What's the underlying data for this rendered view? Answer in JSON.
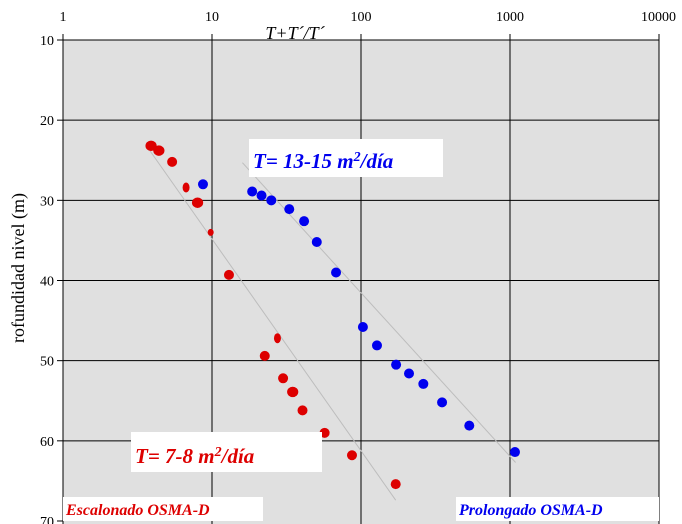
{
  "chart_data": {
    "type": "scatter",
    "title": "",
    "xlabel": "T+T´/T´",
    "ylabel": "rofundidad nivel (m)",
    "x_scale": "log",
    "xlim": [
      1,
      10000
    ],
    "ylim": [
      10,
      70
    ],
    "y_inverted": true,
    "x_tick_labels": [
      "1",
      "10",
      "100",
      "1000",
      "10000"
    ],
    "x_ticks": [
      1,
      10,
      100,
      1000,
      10000
    ],
    "y_tick_labels": [
      "10",
      "20",
      "30",
      "40",
      "50",
      "60",
      "70"
    ],
    "y_ticks": [
      10,
      20,
      30,
      40,
      50,
      60,
      70
    ],
    "grid": true,
    "colors": {
      "plot_background": "#e0e0e0",
      "gridline": "#000000",
      "escalonado": "#dd0000",
      "prolongado": "#0000ee",
      "trend_line": "#bdbdbd"
    },
    "annotations": {
      "prolongado_transmissivity": {
        "prefix": "T= 13-15 m",
        "sup": "2",
        "suffix": "/día"
      },
      "escalonado_transmissivity": {
        "prefix": "T= 7-8 m",
        "sup": "2",
        "suffix": "/día"
      }
    },
    "series": [
      {
        "name": "Escalonado OSMA-D",
        "color": "#dd0000",
        "points": [
          {
            "x": 3.9,
            "y": 23.2,
            "s": "l"
          },
          {
            "x": 4.4,
            "y": 23.8,
            "s": "l"
          },
          {
            "x": 5.4,
            "y": 25.2,
            "s": "m"
          },
          {
            "x": 6.7,
            "y": 28.4,
            "s": "s"
          },
          {
            "x": 8.0,
            "y": 30.3,
            "s": "l"
          },
          {
            "x": 9.8,
            "y": 34.0,
            "s": "xs"
          },
          {
            "x": 13.0,
            "y": 39.3,
            "s": "m"
          },
          {
            "x": 27.5,
            "y": 47.2,
            "s": "s"
          },
          {
            "x": 22.6,
            "y": 49.4,
            "s": "m"
          },
          {
            "x": 30.0,
            "y": 52.2,
            "s": "m"
          },
          {
            "x": 34.8,
            "y": 53.9,
            "s": "l"
          },
          {
            "x": 40.5,
            "y": 56.2,
            "s": "m"
          },
          {
            "x": 57.0,
            "y": 59.0,
            "s": "m"
          },
          {
            "x": 87.0,
            "y": 61.8,
            "s": "m"
          },
          {
            "x": 171.0,
            "y": 65.4,
            "s": "m"
          }
        ],
        "trend": [
          [
            3.6,
            23.1
          ],
          [
            171.0,
            67.4
          ]
        ]
      },
      {
        "name": "Prolongado OSMA-D",
        "color": "#0000ee",
        "points": [
          {
            "x": 8.7,
            "y": 28.0,
            "s": "m"
          },
          {
            "x": 18.6,
            "y": 28.9,
            "s": "m"
          },
          {
            "x": 21.5,
            "y": 29.4,
            "s": "m"
          },
          {
            "x": 25.0,
            "y": 30.0,
            "s": "m"
          },
          {
            "x": 33.0,
            "y": 31.1,
            "s": "m"
          },
          {
            "x": 41.5,
            "y": 32.6,
            "s": "m"
          },
          {
            "x": 50.5,
            "y": 35.2,
            "s": "m"
          },
          {
            "x": 68.0,
            "y": 39.0,
            "s": "m"
          },
          {
            "x": 103.0,
            "y": 45.8,
            "s": "m"
          },
          {
            "x": 128.0,
            "y": 48.1,
            "s": "m"
          },
          {
            "x": 172.0,
            "y": 50.5,
            "s": "m"
          },
          {
            "x": 210.0,
            "y": 51.6,
            "s": "m"
          },
          {
            "x": 262.0,
            "y": 52.9,
            "s": "m"
          },
          {
            "x": 350.0,
            "y": 55.2,
            "s": "m"
          },
          {
            "x": 533.0,
            "y": 58.1,
            "s": "m"
          },
          {
            "x": 1080.0,
            "y": 61.4,
            "s": "m"
          }
        ],
        "trend": [
          [
            16.0,
            25.3
          ],
          [
            1090.0,
            62.7
          ]
        ]
      }
    ],
    "legend_labels": {
      "left": "Escalonado OSMA-D",
      "right": "Prolongado OSMA-D"
    }
  }
}
